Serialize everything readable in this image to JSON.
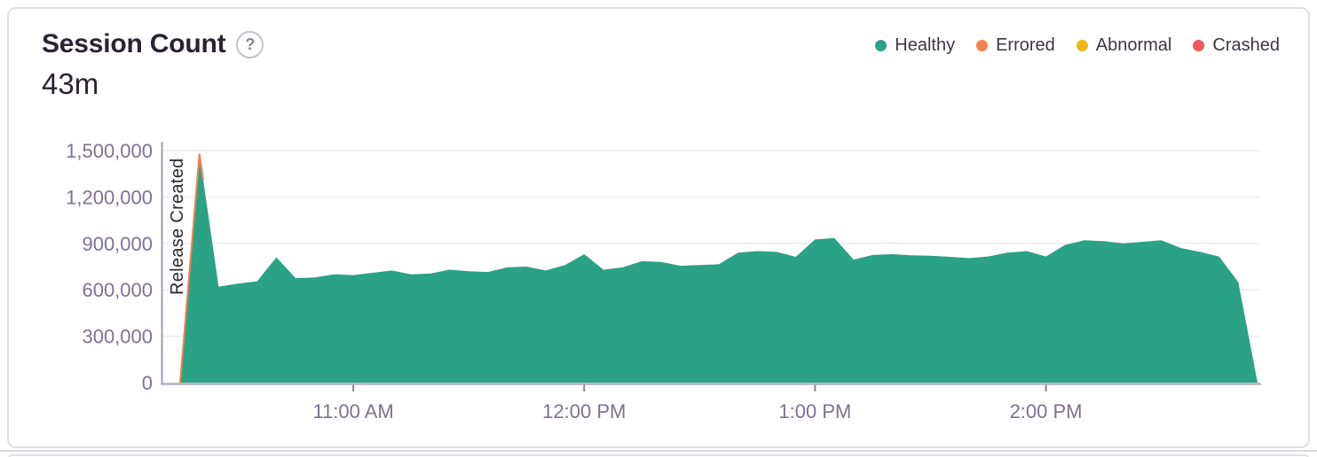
{
  "header": {
    "title": "Session Count",
    "help_glyph": "?",
    "total": "43m"
  },
  "legend": {
    "position": "top-right",
    "items": [
      {
        "label": "Healthy",
        "color": "#2ba185"
      },
      {
        "label": "Errored",
        "color": "#f4834f"
      },
      {
        "label": "Abnormal",
        "color": "#efb712"
      },
      {
        "label": "Crashed",
        "color": "#f45757"
      }
    ]
  },
  "chart_data": {
    "type": "area",
    "title": "Session Count",
    "unit": "sessions",
    "interval": "5m",
    "stacked": true,
    "grid": "horizontal",
    "legend_position": "top-right",
    "xlabel": "",
    "ylabel": "",
    "ylim": [
      0,
      1500000
    ],
    "y_ticks": [
      {
        "label": "0",
        "value": 0
      },
      {
        "label": "300,000",
        "value": 300000
      },
      {
        "label": "600,000",
        "value": 600000
      },
      {
        "label": "900,000",
        "value": 900000
      },
      {
        "label": "1,200,000",
        "value": 1200000
      },
      {
        "label": "1,500,000",
        "value": 1500000
      }
    ],
    "x_ticks": [
      {
        "label": "11:00 AM",
        "index": 9
      },
      {
        "label": "12:00 PM",
        "index": 21
      },
      {
        "label": "1:00 PM",
        "index": 33
      },
      {
        "label": "2:00 PM",
        "index": 45
      }
    ],
    "annotation": {
      "label": "Release Created",
      "index": 0
    },
    "x": [
      "10:15 AM",
      "10:20 AM",
      "10:25 AM",
      "10:30 AM",
      "10:35 AM",
      "10:40 AM",
      "10:45 AM",
      "10:50 AM",
      "10:55 AM",
      "11:00 AM",
      "11:05 AM",
      "11:10 AM",
      "11:15 AM",
      "11:20 AM",
      "11:25 AM",
      "11:30 AM",
      "11:35 AM",
      "11:40 AM",
      "11:45 AM",
      "11:50 AM",
      "11:55 AM",
      "12:00 PM",
      "12:05 PM",
      "12:10 PM",
      "12:15 PM",
      "12:20 PM",
      "12:25 PM",
      "12:30 PM",
      "12:35 PM",
      "12:40 PM",
      "12:45 PM",
      "12:50 PM",
      "12:55 PM",
      "1:00 PM",
      "1:05 PM",
      "1:10 PM",
      "1:15 PM",
      "1:20 PM",
      "1:25 PM",
      "1:30 PM",
      "1:35 PM",
      "1:40 PM",
      "1:45 PM",
      "1:50 PM",
      "1:55 PM",
      "2:00 PM",
      "2:05 PM",
      "2:10 PM",
      "2:15 PM",
      "2:20 PM",
      "2:25 PM",
      "2:30 PM",
      "2:35 PM",
      "2:40 PM",
      "2:45 PM",
      "2:50 PM",
      "2:55 PM"
    ],
    "series": [
      {
        "name": "Healthy",
        "color": "#2ba185",
        "values": [
          0,
          1480000,
          620000,
          640000,
          655000,
          810000,
          675000,
          680000,
          700000,
          695000,
          710000,
          725000,
          700000,
          705000,
          730000,
          720000,
          715000,
          745000,
          750000,
          725000,
          760000,
          830000,
          730000,
          745000,
          785000,
          780000,
          755000,
          760000,
          765000,
          840000,
          850000,
          845000,
          813000,
          925000,
          935000,
          795000,
          825000,
          830000,
          823000,
          820000,
          813000,
          805000,
          815000,
          840000,
          850000,
          815000,
          890000,
          920000,
          915000,
          900000,
          910000,
          920000,
          870000,
          845000,
          815000,
          650000,
          0
        ]
      }
    ],
    "spike_edge_color": "#f4834f"
  },
  "colors": {
    "card_border": "#e0dce4",
    "title_text": "#2b2233",
    "axis_label": "#80708f",
    "legend_text": "#3e3446",
    "gridline": "#f1eff4",
    "axis_line": "#a39bb0",
    "baseline": "#b5adc0",
    "tick": "#8a8199",
    "annotation_text": "#2d2533"
  }
}
